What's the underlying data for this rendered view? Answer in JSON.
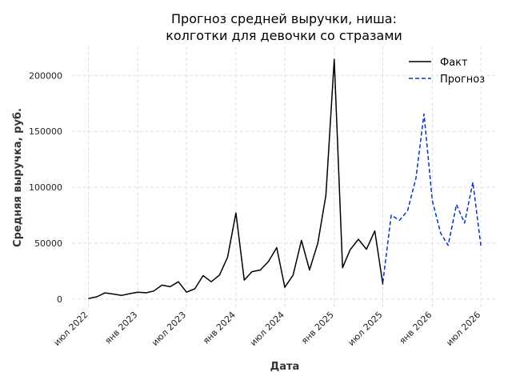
{
  "chart_data": {
    "type": "line",
    "title_line1": "Прогноз средней выручки, ниша:",
    "title_line2": "колготки для девочки со стразами",
    "xlabel": "Дата",
    "ylabel": "Средняя выручка, руб.",
    "ylim": [
      -8000,
      226000
    ],
    "y_ticks": [
      0,
      50000,
      100000,
      150000,
      200000
    ],
    "x_ticks": [
      {
        "date": "2022-07-01",
        "label": "июл 2022"
      },
      {
        "date": "2023-01-01",
        "label": "янв 2023"
      },
      {
        "date": "2023-07-01",
        "label": "июл 2023"
      },
      {
        "date": "2024-01-01",
        "label": "янв 2024"
      },
      {
        "date": "2024-07-01",
        "label": "июл 2024"
      },
      {
        "date": "2025-01-01",
        "label": "янв 2025"
      },
      {
        "date": "2025-07-01",
        "label": "июл 2025"
      },
      {
        "date": "2026-01-01",
        "label": "янв 2026"
      },
      {
        "date": "2026-07-01",
        "label": "июл 2026"
      }
    ],
    "xlim": [
      "2022-05-01",
      "2026-09-01"
    ],
    "grid": true,
    "legend_position": "top-right",
    "series": [
      {
        "name": "Факт",
        "color": "#000000",
        "style": "solid",
        "points": [
          {
            "x": "2022-07-01",
            "y": 500
          },
          {
            "x": "2022-08-01",
            "y": 2000
          },
          {
            "x": "2022-09-01",
            "y": 5500
          },
          {
            "x": "2022-10-01",
            "y": 4500
          },
          {
            "x": "2022-11-01",
            "y": 3200
          },
          {
            "x": "2022-12-01",
            "y": 4800
          },
          {
            "x": "2023-01-01",
            "y": 6200
          },
          {
            "x": "2023-02-01",
            "y": 5600
          },
          {
            "x": "2023-03-01",
            "y": 7200
          },
          {
            "x": "2023-04-01",
            "y": 12500
          },
          {
            "x": "2023-05-01",
            "y": 11000
          },
          {
            "x": "2023-06-01",
            "y": 15500
          },
          {
            "x": "2023-07-01",
            "y": 6200
          },
          {
            "x": "2023-08-01",
            "y": 9200
          },
          {
            "x": "2023-09-01",
            "y": 21000
          },
          {
            "x": "2023-10-01",
            "y": 15500
          },
          {
            "x": "2023-11-01",
            "y": 21500
          },
          {
            "x": "2023-12-01",
            "y": 37500
          },
          {
            "x": "2024-01-01",
            "y": 77000
          },
          {
            "x": "2024-02-01",
            "y": 17000
          },
          {
            "x": "2024-03-01",
            "y": 24500
          },
          {
            "x": "2024-04-01",
            "y": 26000
          },
          {
            "x": "2024-05-01",
            "y": 33500
          },
          {
            "x": "2024-06-01",
            "y": 46000
          },
          {
            "x": "2024-07-01",
            "y": 10500
          },
          {
            "x": "2024-08-01",
            "y": 21500
          },
          {
            "x": "2024-09-01",
            "y": 52500
          },
          {
            "x": "2024-10-01",
            "y": 26000
          },
          {
            "x": "2024-11-01",
            "y": 50000
          },
          {
            "x": "2024-12-01",
            "y": 93000
          },
          {
            "x": "2025-01-01",
            "y": 214500
          },
          {
            "x": "2025-02-01",
            "y": 28000
          },
          {
            "x": "2025-03-01",
            "y": 44000
          },
          {
            "x": "2025-04-01",
            "y": 53500
          },
          {
            "x": "2025-05-01",
            "y": 44500
          },
          {
            "x": "2025-06-01",
            "y": 61000
          },
          {
            "x": "2025-07-01",
            "y": 13000
          }
        ]
      },
      {
        "name": "Прогноз",
        "color": "#0033cc",
        "style": "dashed",
        "points": [
          {
            "x": "2025-07-01",
            "y": 15000
          },
          {
            "x": "2025-08-01",
            "y": 75000
          },
          {
            "x": "2025-09-01",
            "y": 70500
          },
          {
            "x": "2025-10-01",
            "y": 79000
          },
          {
            "x": "2025-11-01",
            "y": 108000
          },
          {
            "x": "2025-12-01",
            "y": 165500
          },
          {
            "x": "2026-01-01",
            "y": 88000
          },
          {
            "x": "2026-02-01",
            "y": 59000
          },
          {
            "x": "2026-03-01",
            "y": 48000
          },
          {
            "x": "2026-04-01",
            "y": 84500
          },
          {
            "x": "2026-05-01",
            "y": 68000
          },
          {
            "x": "2026-06-01",
            "y": 104500
          },
          {
            "x": "2026-07-01",
            "y": 47000
          }
        ]
      }
    ]
  }
}
